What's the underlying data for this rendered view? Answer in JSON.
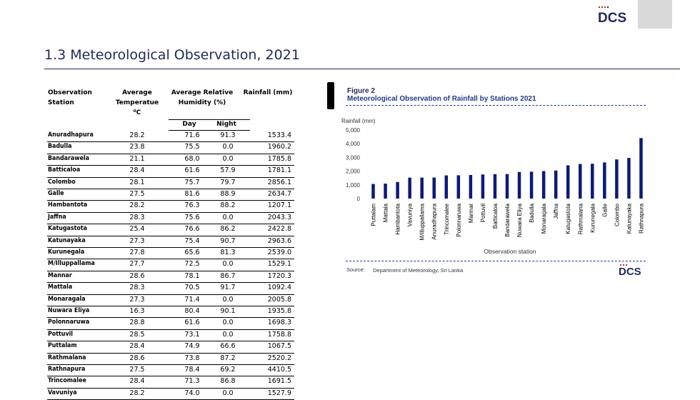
{
  "logo_text": "DCS",
  "section_title": "1.3   Meteorological Observation, 2021",
  "table": {
    "headers": {
      "station": "Observation Station",
      "temp": "Average Temperatue",
      "temp_unit": "⁰C",
      "humidity": "Average Relative Humidity (%)",
      "rainfall": "Rainfall (mm)",
      "day": "Day",
      "night": "Night"
    },
    "rows": [
      {
        "station": "Anuradhapura",
        "temp": "28.2",
        "day": "71.6",
        "night": "91.3",
        "rain": "1533.4"
      },
      {
        "station": "Badulla",
        "temp": "23.8",
        "day": "75.5",
        "night": "0.0",
        "rain": "1960.2"
      },
      {
        "station": "Bandarawela",
        "temp": "21.1",
        "day": "68.0",
        "night": "0.0",
        "rain": "1785.8"
      },
      {
        "station": "Batticaloa",
        "temp": "28.4",
        "day": "61.6",
        "night": "57.9",
        "rain": "1781.1"
      },
      {
        "station": "Colombo",
        "temp": "28.1",
        "day": "75.7",
        "night": "79.7",
        "rain": "2856.1"
      },
      {
        "station": "Galle",
        "temp": "27.5",
        "day": "81.6",
        "night": "88.9",
        "rain": "2634.7"
      },
      {
        "station": "Hambantota",
        "temp": "28.2",
        "day": "76.3",
        "night": "88.2",
        "rain": "1207.1"
      },
      {
        "station": "Jaffna",
        "temp": "28.3",
        "day": "75.6",
        "night": "0.0",
        "rain": "2043.3"
      },
      {
        "station": "Katugastota",
        "temp": "25.4",
        "day": "76.6",
        "night": "86.2",
        "rain": "2422.8"
      },
      {
        "station": "Katunayaka",
        "temp": "27.3",
        "day": "75.4",
        "night": "90.7",
        "rain": "2963.6"
      },
      {
        "station": "Kurunegala",
        "temp": "27.8",
        "day": "65.6",
        "night": "81.3",
        "rain": "2539.0"
      },
      {
        "station": "M/Illuppallama",
        "temp": "27.7",
        "day": "72.5",
        "night": "0.0",
        "rain": "1529.1"
      },
      {
        "station": "Mannar",
        "temp": "28.6",
        "day": "78.1",
        "night": "86.7",
        "rain": "1720.3"
      },
      {
        "station": "Mattala",
        "temp": "28.3",
        "day": "70.5",
        "night": "91.7",
        "rain": "1092.4"
      },
      {
        "station": "Monaragala",
        "temp": "27.3",
        "day": "71.4",
        "night": "0.0",
        "rain": "2005.8"
      },
      {
        "station": "Nuwara Eliya",
        "temp": "16.3",
        "day": "80.4",
        "night": "90.1",
        "rain": "1935.8"
      },
      {
        "station": "Polonnaruwa",
        "temp": "28.8",
        "day": "61.6",
        "night": "0.0",
        "rain": "1698.3"
      },
      {
        "station": "Pottuvil",
        "temp": "28.5",
        "day": "73.1",
        "night": "0.0",
        "rain": "1758.8"
      },
      {
        "station": "Puttalam",
        "temp": "28.4",
        "day": "74.9",
        "night": "66.6",
        "rain": "1067.5"
      },
      {
        "station": "Rathmalana",
        "temp": "28.6",
        "day": "73.8",
        "night": "87.2",
        "rain": "2520.2"
      },
      {
        "station": "Rathnapura",
        "temp": "27.5",
        "day": "78.4",
        "night": "69.2",
        "rain": "4410.5"
      },
      {
        "station": "Trincomalee",
        "temp": "28.4",
        "day": "71.3",
        "night": "86.8",
        "rain": "1691.5"
      },
      {
        "station": "Vavuniya",
        "temp": "28.2",
        "day": "74.0",
        "night": "0.0",
        "rain": "1527.9"
      }
    ]
  },
  "figure": {
    "number": "Figure 2",
    "title": "Meteorological Observation of Rainfall by Stations 2021",
    "source_label": "Source:",
    "source_value": "Department of Meteorology, Sri Lanka"
  },
  "chart_data": {
    "type": "bar",
    "title": "Meteorological Observation of Rainfall by Stations 2021",
    "ylabel": "Rainfall (mm)",
    "xlabel": "Observation station",
    "ylim": [
      0,
      5000
    ],
    "yticks": [
      "0",
      "1,000",
      "2,000",
      "3,000",
      "4,000",
      "5,000"
    ],
    "bar_color": "#0b1a7a",
    "categories": [
      "Puttalam",
      "Mattala",
      "Hambantota",
      "Vavuniya",
      "M/Illuppallama",
      "Anuradhapura",
      "Trincomalee",
      "Polonnaruwa",
      "Mannar",
      "Pottuvil",
      "Batticaloa",
      "Bandarawela",
      "Nuwara Eliya",
      "Badulla",
      "Monaragala",
      "Jaffna",
      "Katugastota",
      "Rathmalana",
      "Kurunegala",
      "Galle",
      "Colombo",
      "Katunayaka",
      "Rathnapura"
    ],
    "values": [
      1067.5,
      1092.4,
      1207.1,
      1527.9,
      1529.1,
      1533.4,
      1691.5,
      1698.3,
      1720.3,
      1758.8,
      1781.1,
      1785.8,
      1935.8,
      1960.2,
      2005.8,
      2043.3,
      2422.8,
      2520.2,
      2539.0,
      2634.7,
      2856.1,
      2963.6,
      4410.5
    ]
  }
}
